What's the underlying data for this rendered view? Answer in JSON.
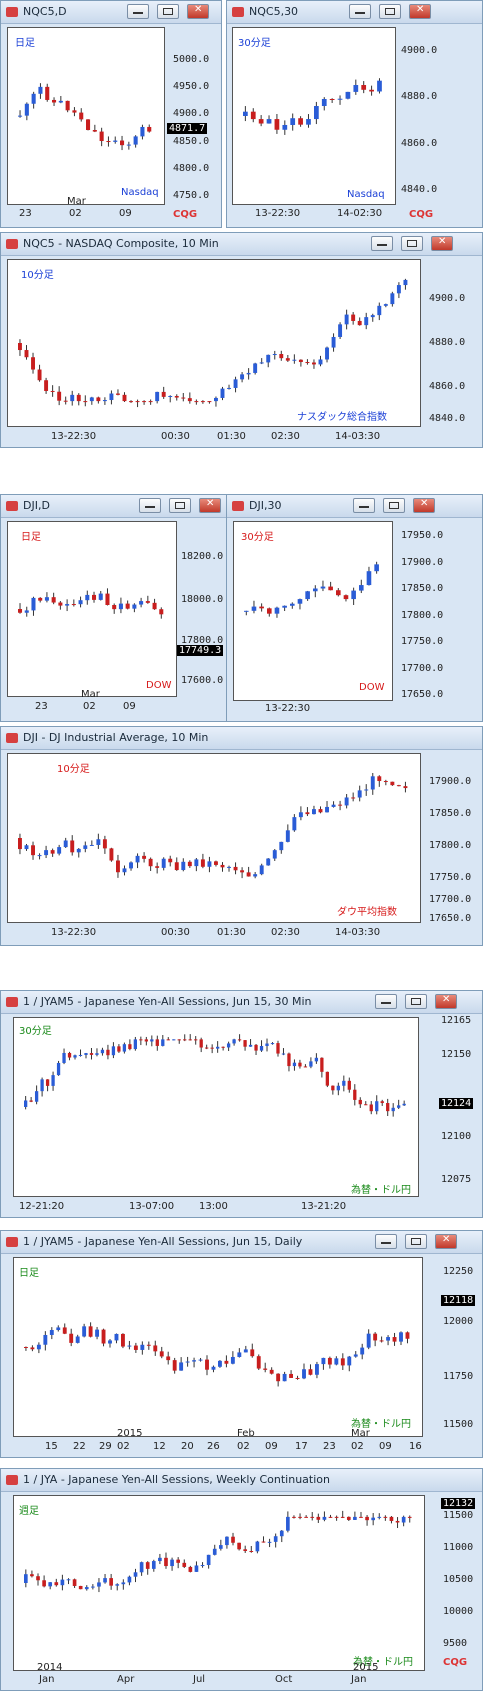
{
  "windows": [
    {
      "id": "w1",
      "title": "NQC5,D",
      "tf_label": "日足",
      "tf_color": "#1a3fd6",
      "name": "Nasdaq",
      "name_color": "#1a3fd6",
      "price": "4871.7",
      "yticks": [
        "5000.0",
        "4950.0",
        "4900.0",
        "4850.0",
        "4800.0",
        "4750.0"
      ],
      "xticks": [
        "23",
        "02",
        "09"
      ],
      "xsub": "Mar",
      "logo": "CQG"
    },
    {
      "id": "w2",
      "title": "NQC5,30",
      "tf_label": "30分足",
      "tf_color": "#1a3fd6",
      "name": "Nasdaq",
      "name_color": "#1a3fd6",
      "yticks": [
        "4900.0",
        "4880.0",
        "4860.0",
        "4840.0"
      ],
      "xticks": [
        "13-22:30",
        "14-02:30"
      ],
      "logo": "CQG"
    },
    {
      "id": "w3",
      "title": "NQC5 - NASDAQ Composite, 10 Min",
      "tf_label": "10分足",
      "tf_color": "#1a3fd6",
      "name": "ナスダック総合指数",
      "name_color": "#1a3fd6",
      "yticks": [
        "4900.0",
        "4880.0",
        "4860.0",
        "4840.0"
      ],
      "xticks": [
        "13-22:30",
        "00:30",
        "01:30",
        "02:30",
        "14-03:30"
      ]
    },
    {
      "id": "w4",
      "title": "DJI,D",
      "tf_label": "日足",
      "tf_color": "#d61a1a",
      "name": "DOW",
      "name_color": "#d61a1a",
      "price": "17749.3",
      "yticks": [
        "18200.0",
        "18000.0",
        "17800.0",
        "17600.0"
      ],
      "xticks": [
        "23",
        "02",
        "09"
      ],
      "xsub": "Mar"
    },
    {
      "id": "w5",
      "title": "DJI,30",
      "tf_label": "30分足",
      "tf_color": "#d61a1a",
      "name": "DOW",
      "name_color": "#d61a1a",
      "yticks": [
        "17950.0",
        "17900.0",
        "17850.0",
        "17800.0",
        "17750.0",
        "17700.0",
        "17650.0"
      ],
      "xticks": [
        "13-22:30"
      ]
    },
    {
      "id": "w6",
      "title": "DJI - DJ Industrial Average, 10 Min",
      "tf_label": "10分足",
      "tf_color": "#d61a1a",
      "name": "ダウ平均指数",
      "name_color": "#d61a1a",
      "yticks": [
        "17900.0",
        "17850.0",
        "17800.0",
        "17750.0",
        "17700.0",
        "17650.0"
      ],
      "xticks": [
        "13-22:30",
        "00:30",
        "01:30",
        "02:30",
        "14-03:30"
      ]
    },
    {
      "id": "w7",
      "title": "1 / JYAM5 - Japanese Yen-All Sessions, Jun 15, 30 Min",
      "tf_label": "30分足",
      "tf_color": "#1a8a1a",
      "name": "為替・ドル円",
      "name_color": "#1a8a1a",
      "price": "12124",
      "yticks": [
        "12150",
        "12100",
        "12075"
      ],
      "ytop": "12165",
      "xticks": [
        "12-21:20",
        "13-07:00",
        "13:00",
        "13-21:20"
      ]
    },
    {
      "id": "w8",
      "title": "1 / JYAM5 - Japanese Yen-All Sessions, Jun 15, Daily",
      "tf_label": "日足",
      "tf_color": "#1a8a1a",
      "name": "為替・ドル円",
      "name_color": "#1a8a1a",
      "price": "12118",
      "yticks": [
        "12250",
        "12000",
        "11750",
        "11500"
      ],
      "xticks": [
        "15",
        "22",
        "29",
        "02",
        "12",
        "20",
        "26",
        "02",
        "09",
        "17",
        "23",
        "02",
        "09",
        "16"
      ],
      "xsub1": "2015",
      "xsub2": "Feb",
      "xsub3": "Mar"
    },
    {
      "id": "w9",
      "title": "1 / JYA - Japanese Yen-All Sessions, Weekly Continuation",
      "tf_label": "週足",
      "tf_color": "#1a8a1a",
      "name": "為替・ドル円",
      "name_color": "#1a8a1a",
      "price": "12132",
      "yticks": [
        "11500",
        "11000",
        "10500",
        "10000",
        "9500"
      ],
      "xticks": [
        "Jan",
        "Apr",
        "Jul",
        "Oct",
        "Jan"
      ],
      "xsub1": "2014",
      "xsub2": "2015",
      "logo": "CQG"
    }
  ],
  "chart_data": [
    {
      "type": "candlestick",
      "title": "NQC5,D",
      "series": [
        {
          "name": "Nasdaq",
          "close_last": 4871.7
        }
      ],
      "ylim": [
        4740,
        5030
      ]
    },
    {
      "type": "candlestick",
      "title": "NQC5,30",
      "ylim": [
        4832,
        4905
      ]
    },
    {
      "type": "candlestick",
      "title": "NQC5 - NASDAQ Composite, 10 Min",
      "ylim": [
        4832,
        4912
      ]
    },
    {
      "type": "candlestick",
      "title": "DJI,D",
      "series": [
        {
          "name": "DOW",
          "close_last": 17749.3
        }
      ],
      "ylim": [
        17540,
        18320
      ]
    },
    {
      "type": "candlestick",
      "title": "DJI,30",
      "ylim": [
        17610,
        17970
      ]
    },
    {
      "type": "candlestick",
      "title": "DJI - DJ Industrial Average, 10 Min",
      "ylim": [
        17610,
        17930
      ]
    },
    {
      "type": "candlestick",
      "title": "1 / JYAM5 - Japanese Yen-All Sessions, Jun 15, 30 Min",
      "series": [
        {
          "name": "為替・ドル円",
          "close_last": 12124
        }
      ],
      "ylim": [
        12060,
        12170
      ]
    },
    {
      "type": "candlestick",
      "title": "1 / JYAM5 - Japanese Yen-All Sessions, Jun 15, Daily",
      "series": [
        {
          "name": "為替・ドル円",
          "close_last": 12118
        }
      ],
      "ylim": [
        11400,
        12320
      ]
    },
    {
      "type": "candlestick",
      "title": "1 / JYA - Japanese Yen-All Sessions, Weekly Continuation",
      "series": [
        {
          "name": "為替・ドル円",
          "close_last": 12132
        }
      ],
      "ylim": [
        9400,
        12250
      ]
    }
  ]
}
